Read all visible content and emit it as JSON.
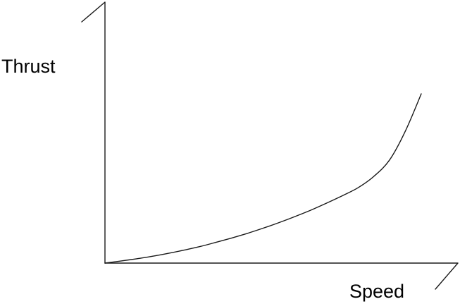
{
  "chart_data": {
    "type": "line",
    "title": "",
    "xlabel": "Speed",
    "ylabel": "Thrust",
    "grid": false,
    "legend": "none",
    "xlim": [
      0,
      10
    ],
    "ylim": [
      0,
      10
    ],
    "series": [
      {
        "x": [
          0,
          0.5,
          1,
          1.5,
          2,
          2.5,
          3,
          3.5,
          4,
          4.5,
          5,
          5.5,
          6,
          6.5,
          7,
          7.5,
          8,
          8.5,
          9,
          9.5,
          10
        ],
        "values": [
          0,
          0.1,
          0.21,
          0.33,
          0.47,
          0.63,
          0.8,
          1.0,
          1.21,
          1.44,
          1.69,
          1.96,
          2.25,
          2.56,
          2.9,
          3.26,
          3.65,
          4.2,
          5.0,
          6.4,
          8.2
        ]
      }
    ]
  }
}
